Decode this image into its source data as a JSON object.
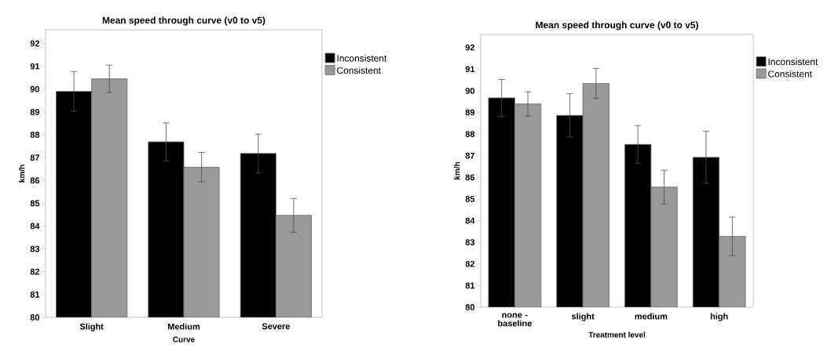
{
  "chart_data": [
    {
      "type": "bar",
      "title": "Mean speed through curve (v0 to v5)",
      "xlabel": "Curve",
      "ylabel": "km/h",
      "categories": [
        "Slight",
        "Medium",
        "Severe"
      ],
      "series": [
        {
          "name": "Inconsistent",
          "color": "#000000",
          "values": [
            89.9,
            87.69,
            87.18
          ],
          "errors": [
            0.87,
            0.83,
            0.85
          ]
        },
        {
          "name": "Consistent",
          "color": "#999999",
          "values": [
            90.45,
            86.58,
            84.47
          ],
          "errors": [
            0.6,
            0.65,
            0.74
          ]
        }
      ],
      "ylim": [
        80,
        92.6
      ],
      "yticks": [
        80,
        81,
        82,
        83,
        84,
        85,
        86,
        87,
        88,
        89,
        90,
        91,
        92
      ],
      "legend": "top right"
    },
    {
      "type": "bar",
      "title": "Mean speed through curve (v0 to v5)",
      "xlabel": "Treatment level",
      "ylabel": "km/h",
      "categories": [
        "none - baseline",
        "slight",
        "medium",
        "high"
      ],
      "series": [
        {
          "name": "Inconsistent",
          "color": "#000000",
          "values": [
            89.67,
            88.86,
            87.52,
            86.92
          ],
          "errors": [
            0.85,
            1.0,
            0.87,
            1.2
          ]
        },
        {
          "name": "Consistent",
          "color": "#999999",
          "values": [
            89.39,
            90.34,
            85.55,
            83.27
          ],
          "errors": [
            0.56,
            0.69,
            0.78,
            0.89
          ]
        }
      ],
      "ylim": [
        80,
        92.6
      ],
      "yticks": [
        80,
        81,
        82,
        83,
        84,
        85,
        86,
        87,
        88,
        89,
        90,
        91,
        92
      ],
      "legend": "top right"
    }
  ]
}
